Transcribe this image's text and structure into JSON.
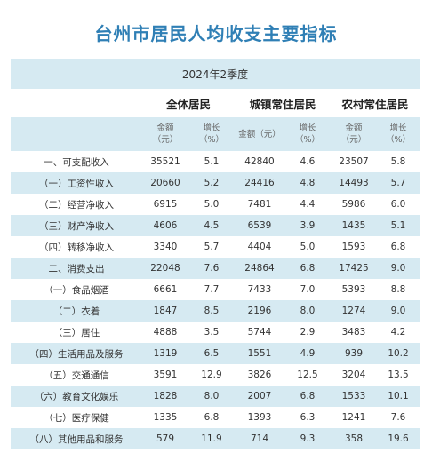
{
  "title": "台州市居民人均收支主要指标",
  "table": {
    "period": "2024年2季度",
    "groups": [
      "全体居民",
      "城镇常住居民",
      "农村常住居民"
    ],
    "subheaders": [
      "金额\n（元）",
      "增长\n（%）",
      "金额（元）",
      "增长\n（%）",
      "金额\n（元）",
      "增长\n（%）"
    ],
    "rows": [
      [
        "一、可支配收入",
        "35521",
        "5.1",
        "42840",
        "4.6",
        "23507",
        "5.8"
      ],
      [
        "（一）工资性收入",
        "20660",
        "5.2",
        "24416",
        "4.8",
        "14493",
        "5.7"
      ],
      [
        "（二）经营净收入",
        "6915",
        "5.0",
        "7481",
        "4.4",
        "5986",
        "6.0"
      ],
      [
        "（三）财产净收入",
        "4606",
        "4.5",
        "6539",
        "3.9",
        "1435",
        "5.1"
      ],
      [
        "（四）转移净收入",
        "3340",
        "5.7",
        "4404",
        "5.0",
        "1593",
        "6.8"
      ],
      [
        "二、消费支出",
        "22048",
        "7.6",
        "24864",
        "6.8",
        "17425",
        "9.0"
      ],
      [
        "（一）食品烟酒",
        "6661",
        "7.7",
        "7433",
        "7.0",
        "5393",
        "8.8"
      ],
      [
        "（二）衣着",
        "1847",
        "8.5",
        "2196",
        "8.0",
        "1274",
        "9.0"
      ],
      [
        "（三）居住",
        "4888",
        "3.5",
        "5744",
        "2.9",
        "3483",
        "4.2"
      ],
      [
        "（四）生活用品及服务",
        "1319",
        "6.5",
        "1551",
        "4.9",
        "939",
        "10.2"
      ],
      [
        "（五）交通通信",
        "3591",
        "12.9",
        "3826",
        "12.5",
        "3204",
        "13.5"
      ],
      [
        "（六）教育文化娱乐",
        "1828",
        "8.0",
        "2007",
        "6.8",
        "1533",
        "10.1"
      ],
      [
        "（七）医疗保健",
        "1335",
        "6.8",
        "1393",
        "6.3",
        "1241",
        "7.6"
      ],
      [
        "（八）其他用品和服务",
        "579",
        "11.9",
        "714",
        "9.3",
        "358",
        "19.6"
      ]
    ]
  }
}
